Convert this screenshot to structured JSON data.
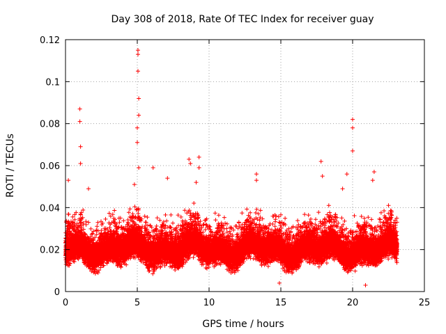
{
  "chart_data": {
    "type": "scatter",
    "title": "Day 308 of 2018, Rate Of TEC Index for receiver guay",
    "xlabel": "GPS time / hours",
    "ylabel": "ROTI / TECUs",
    "xlim": [
      0,
      25
    ],
    "ylim": [
      0,
      0.12
    ],
    "xticks": [
      0,
      5,
      10,
      15,
      20,
      25
    ],
    "yticks": [
      0,
      0.02,
      0.04,
      0.06,
      0.08,
      0.1,
      0.12
    ],
    "xtick_labels": [
      "0",
      "5",
      "10",
      "15",
      "20",
      "25"
    ],
    "ytick_labels": [
      "0",
      "0.02",
      "0.04",
      "0.06",
      "0.08",
      "0.1",
      "0.12"
    ],
    "grid": true,
    "marker": "+",
    "marker_color": "#ff0000",
    "series": [
      {
        "name": "ROTI",
        "x_range": [
          0,
          23.1
        ],
        "typical_band": [
          0.005,
          0.04
        ],
        "peaks": [
          {
            "x": 0.2,
            "y": 0.053
          },
          {
            "x": 1.0,
            "y": 0.087
          },
          {
            "x": 1.0,
            "y": 0.081
          },
          {
            "x": 1.05,
            "y": 0.069
          },
          {
            "x": 1.05,
            "y": 0.061
          },
          {
            "x": 1.6,
            "y": 0.049
          },
          {
            "x": 4.8,
            "y": 0.051
          },
          {
            "x": 5.0,
            "y": 0.078
          },
          {
            "x": 5.0,
            "y": 0.071
          },
          {
            "x": 5.05,
            "y": 0.115
          },
          {
            "x": 5.05,
            "y": 0.113
          },
          {
            "x": 5.05,
            "y": 0.105
          },
          {
            "x": 5.1,
            "y": 0.092
          },
          {
            "x": 5.1,
            "y": 0.084
          },
          {
            "x": 5.1,
            "y": 0.059
          },
          {
            "x": 6.1,
            "y": 0.059
          },
          {
            "x": 7.1,
            "y": 0.054
          },
          {
            "x": 8.6,
            "y": 0.063
          },
          {
            "x": 8.7,
            "y": 0.061
          },
          {
            "x": 9.1,
            "y": 0.052
          },
          {
            "x": 9.3,
            "y": 0.064
          },
          {
            "x": 9.3,
            "y": 0.059
          },
          {
            "x": 13.3,
            "y": 0.056
          },
          {
            "x": 13.3,
            "y": 0.053
          },
          {
            "x": 17.8,
            "y": 0.062
          },
          {
            "x": 17.9,
            "y": 0.055
          },
          {
            "x": 19.3,
            "y": 0.049
          },
          {
            "x": 19.6,
            "y": 0.056
          },
          {
            "x": 20.0,
            "y": 0.082
          },
          {
            "x": 20.0,
            "y": 0.078
          },
          {
            "x": 20.0,
            "y": 0.067
          },
          {
            "x": 21.5,
            "y": 0.057
          },
          {
            "x": 21.4,
            "y": 0.053
          },
          {
            "x": 22.5,
            "y": 0.041
          },
          {
            "x": 20.9,
            "y": 0.003
          },
          {
            "x": 14.9,
            "y": 0.004
          }
        ]
      }
    ]
  }
}
